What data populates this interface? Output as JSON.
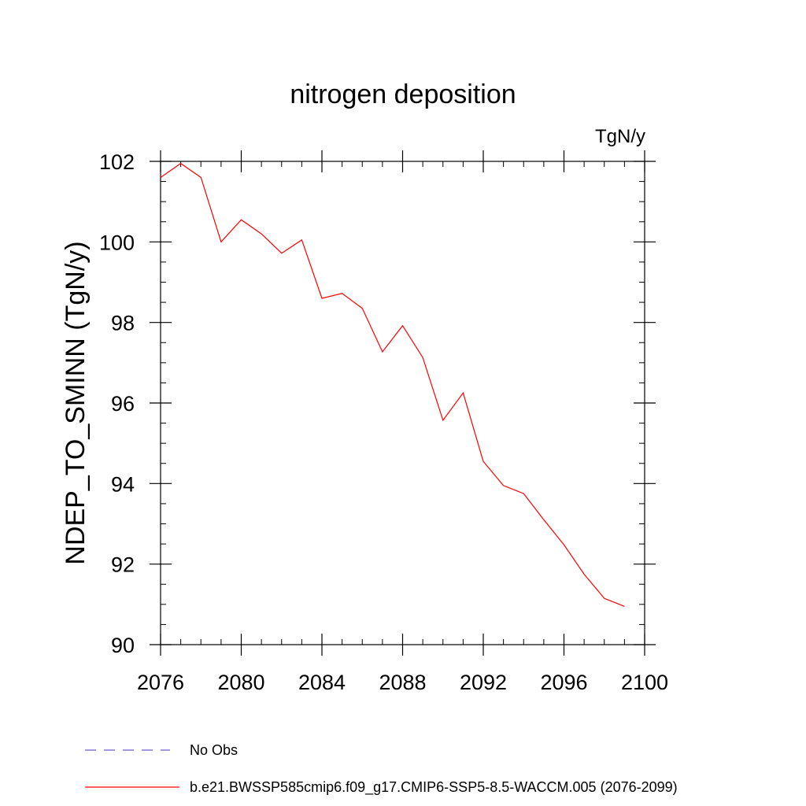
{
  "chart_data": {
    "type": "line",
    "title": "nitrogen deposition",
    "units_label": "TgN/y",
    "xlabel": "",
    "ylabel": "NDEP_TO_SMINN  (TgN/y)",
    "xlim": [
      2076,
      2100
    ],
    "ylim": [
      90,
      102
    ],
    "x_ticks": [
      2076,
      2080,
      2084,
      2088,
      2092,
      2096,
      2100
    ],
    "y_ticks": [
      90,
      92,
      94,
      96,
      98,
      100,
      102
    ],
    "x_minor_step": 1,
    "y_minor_step": 0.5,
    "grid": false,
    "legend_position": "bottom-left",
    "series": [
      {
        "name": "No Obs",
        "color": "#6a5acd",
        "dash": "dashed",
        "x": [],
        "values": []
      },
      {
        "name": "b.e21.BWSSP585cmip6.f09_g17.CMIP6-SSP5-8.5-WACCM.005 (2076-2099)",
        "color": "#ff0000",
        "dash": "solid",
        "x": [
          2076,
          2077,
          2078,
          2079,
          2080,
          2081,
          2082,
          2083,
          2084,
          2085,
          2086,
          2087,
          2088,
          2089,
          2090,
          2091,
          2092,
          2093,
          2094,
          2095,
          2096,
          2097,
          2098,
          2099
        ],
        "values": [
          101.6,
          101.95,
          101.6,
          100.0,
          100.55,
          100.2,
          99.72,
          100.05,
          98.6,
          98.72,
          98.35,
          97.27,
          97.92,
          97.13,
          95.57,
          96.25,
          94.55,
          93.95,
          93.75,
          93.1,
          92.48,
          91.75,
          91.15,
          90.95
        ]
      }
    ]
  }
}
